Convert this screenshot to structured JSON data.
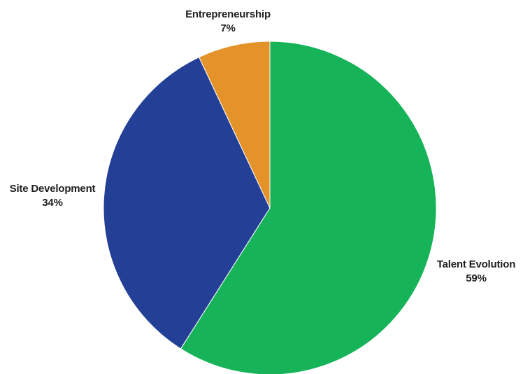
{
  "chart_data": {
    "type": "pie",
    "slices": [
      {
        "label": "Talent Evolution",
        "value": 59,
        "value_text": "59%",
        "color": "#17b359"
      },
      {
        "label": "Site Development",
        "value": 34,
        "value_text": "34%",
        "color": "#233f96"
      },
      {
        "label": "Entrepreneurship",
        "value": 7,
        "value_text": "7%",
        "color": "#e4932a"
      }
    ],
    "start_angle": "12 o'clock",
    "direction": "clockwise",
    "legend": "none",
    "labels": "outside"
  }
}
